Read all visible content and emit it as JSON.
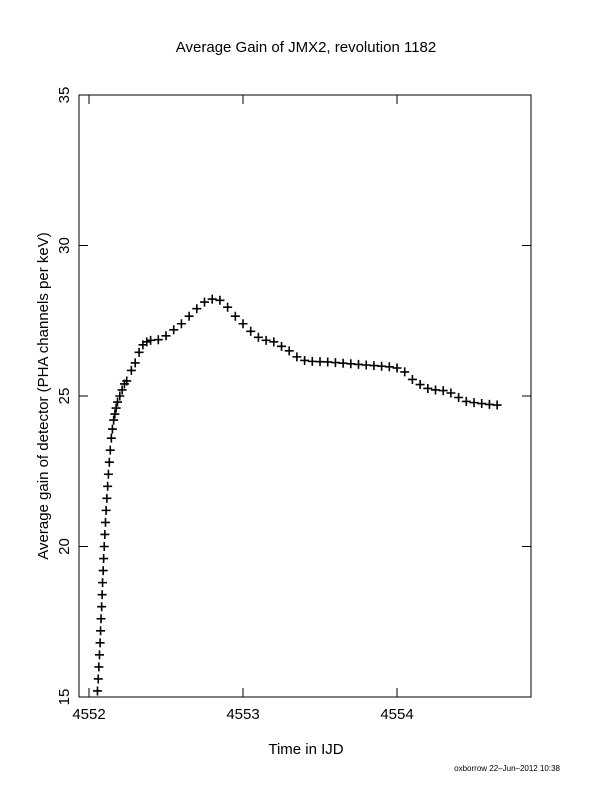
{
  "chart_data": {
    "type": "scatter",
    "title": "Average Gain of JMX2, revolution 1182",
    "xlabel": "Time in IJD",
    "ylabel": "Average gain of detector (PHA channels per keV)",
    "footnote": "oxborrow 22–Jun–2012 10:38",
    "marker": "+",
    "color": "#000000",
    "xlim": [
      4551.935,
      4554.87
    ],
    "ylim": [
      15,
      35
    ],
    "xticks": [
      4552,
      4553,
      4554
    ],
    "yticks": [
      15,
      20,
      25,
      30,
      35
    ],
    "series": [
      {
        "x": [
          4552.055,
          4552.06,
          4552.064,
          4552.068,
          4552.072,
          4552.075,
          4552.078,
          4552.082,
          4552.085,
          4552.088,
          4552.092,
          4552.095,
          4552.099,
          4552.103,
          4552.107,
          4552.111,
          4552.116,
          4552.121,
          4552.126,
          4552.132,
          4552.138,
          4552.145,
          4552.152,
          4552.16,
          4552.168,
          4552.176,
          4552.185,
          4552.2,
          4552.215,
          4552.23,
          4552.245,
          4552.275,
          4552.3,
          4552.325,
          4552.35,
          4552.375,
          4552.4,
          4552.45,
          4552.5,
          4552.55,
          4552.6,
          4552.65,
          4552.7,
          4552.75,
          4552.8,
          4552.85,
          4552.9,
          4552.95,
          4553,
          4553.05,
          4553.1,
          4553.15,
          4553.2,
          4553.25,
          4553.3,
          4553.35,
          4553.4,
          4553.45,
          4553.5,
          4553.55,
          4553.6,
          4553.65,
          4553.7,
          4553.75,
          4553.8,
          4553.85,
          4553.9,
          4553.95,
          4554,
          4554.05,
          4554.1,
          4554.15,
          4554.2,
          4554.25,
          4554.3,
          4554.35,
          4554.4,
          4554.45,
          4554.5,
          4554.55,
          4554.6,
          4554.65
        ],
        "values": [
          15.2,
          15.6,
          16.0,
          16.4,
          16.8,
          17.2,
          17.6,
          18.0,
          18.4,
          18.8,
          19.2,
          19.6,
          20.0,
          20.4,
          20.8,
          21.2,
          21.6,
          22.0,
          22.4,
          22.8,
          23.2,
          23.6,
          23.9,
          24.2,
          24.4,
          24.6,
          24.8,
          25.0,
          25.2,
          25.4,
          25.5,
          25.85,
          26.1,
          26.45,
          26.7,
          26.8,
          26.85,
          26.87,
          27.0,
          27.2,
          27.4,
          27.65,
          27.9,
          28.12,
          28.22,
          28.18,
          27.95,
          27.65,
          27.4,
          27.15,
          26.95,
          26.85,
          26.8,
          26.65,
          26.5,
          26.3,
          26.18,
          26.15,
          26.14,
          26.13,
          26.11,
          26.09,
          26.07,
          26.05,
          26.03,
          26.01,
          25.99,
          25.97,
          25.93,
          25.8,
          25.55,
          25.38,
          25.25,
          25.2,
          25.18,
          25.1,
          24.95,
          24.82,
          24.78,
          24.75,
          24.72,
          24.7
        ]
      }
    ]
  }
}
